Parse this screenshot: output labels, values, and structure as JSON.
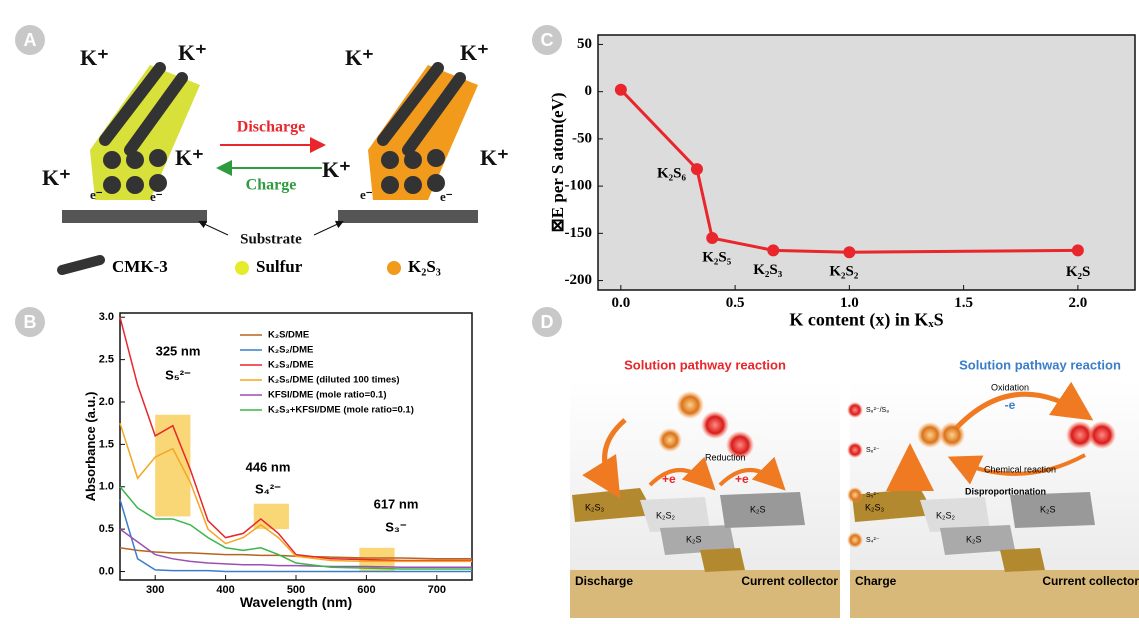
{
  "panel_labels": [
    "A",
    "B",
    "C",
    "D"
  ],
  "panel_a": {
    "ion": "K⁺",
    "electron": "e⁻",
    "discharge": "Discharge",
    "charge": "Charge",
    "substrate": "Substrate",
    "legend": [
      "CMK-3",
      "Sulfur",
      "K₂S₃"
    ]
  },
  "panel_d": {
    "left_title": "Solution pathway reaction",
    "right_title": "Solution pathway reaction",
    "reduction": "Reduction",
    "plus_e": "+e",
    "oxidation": "Oxidation",
    "minus_e": "-e",
    "chemical": "Chemical reaction",
    "disproportionation": "Disproportionation",
    "species": [
      "K₂S₃",
      "K₂S₂",
      "K₂S"
    ],
    "discharge": "Discharge",
    "charge": "Charge",
    "collector": "Current collector",
    "legend": [
      "S₈²⁻/S₈",
      "S₆²⁻",
      "S₅²⁻",
      "S₄²⁻"
    ]
  },
  "chart_data": [
    {
      "type": "line",
      "xlabel": "Wavelength (nm)",
      "ylabel": "Absorbance (a.u.)",
      "x": [
        250,
        275,
        300,
        325,
        350,
        375,
        400,
        425,
        450,
        475,
        500,
        550,
        600,
        650,
        700,
        750
      ],
      "xlim": [
        250,
        750
      ],
      "xticks": [
        300,
        400,
        500,
        600,
        700
      ],
      "ylim": [
        -0.1,
        3.05
      ],
      "yticks": [
        {
          "value": 0,
          "label": "0.0"
        },
        0.5,
        {
          "value": 1,
          "label": "1.0"
        },
        1.5,
        {
          "value": 2,
          "label": "2.0"
        },
        2.5,
        {
          "value": 3,
          "label": "3.0"
        }
      ],
      "series": [
        {
          "name": "K₂S/DME",
          "color": "#b5651d",
          "values": [
            0.28,
            0.25,
            0.23,
            0.22,
            0.22,
            0.21,
            0.2,
            0.2,
            0.19,
            0.19,
            0.18,
            0.17,
            0.16,
            0.16,
            0.15,
            0.15
          ]
        },
        {
          "name": "K₂S₂/DME",
          "color": "#3a7dc9",
          "values": [
            0.85,
            0.15,
            0.02,
            0.01,
            0.01,
            0.01,
            0.0,
            0.0,
            0.0,
            0.0,
            0.0,
            0.0,
            0.0,
            0.0,
            0.0,
            0.0
          ]
        },
        {
          "name": "K₂S₃/DME",
          "color": "#e8262b",
          "values": [
            3.0,
            2.2,
            1.6,
            1.72,
            1.2,
            0.6,
            0.4,
            0.45,
            0.62,
            0.45,
            0.2,
            0.15,
            0.14,
            0.13,
            0.13,
            0.13
          ]
        },
        {
          "name": "K₂S₅/DME (diluted 100 times)",
          "color": "#f5a623",
          "values": [
            1.75,
            1.1,
            1.35,
            1.45,
            1.05,
            0.5,
            0.33,
            0.4,
            0.55,
            0.4,
            0.18,
            0.13,
            0.12,
            0.12,
            0.12,
            0.12
          ]
        },
        {
          "name": "KFSI/DME (mole ratio=0.1)",
          "color": "#9b4fb5",
          "values": [
            0.5,
            0.35,
            0.2,
            0.15,
            0.12,
            0.1,
            0.09,
            0.08,
            0.08,
            0.07,
            0.07,
            0.06,
            0.06,
            0.05,
            0.05,
            0.05
          ]
        },
        {
          "name": "K₂S₃+KFSI/DME (mole ratio=0.1)",
          "color": "#3cb54a",
          "values": [
            1.0,
            0.75,
            0.62,
            0.62,
            0.55,
            0.4,
            0.28,
            0.25,
            0.28,
            0.2,
            0.1,
            0.05,
            0.04,
            0.03,
            0.03,
            0.03
          ]
        }
      ],
      "highlights": [
        {
          "x": [
            300,
            350
          ],
          "y": [
            0.65,
            1.85
          ]
        },
        {
          "x": [
            440,
            490
          ],
          "y": [
            0.5,
            0.8
          ]
        },
        {
          "x": [
            590,
            640
          ],
          "y": [
            0.0,
            0.28
          ]
        }
      ],
      "highlight_color": "#f7c948",
      "annotations": [
        "325 nm",
        "S₅²⁻",
        "446 nm",
        "S₄²⁻",
        "617 nm",
        "S₃⁻"
      ],
      "legend": "upper right"
    },
    {
      "type": "line",
      "xlabel": "K content (x) in KₓS",
      "ylabel": "⊠E per S atom(eV)",
      "x": [
        0,
        0.333,
        0.4,
        0.667,
        1.0,
        2.0
      ],
      "xlim": [
        -0.1,
        2.25
      ],
      "xticks": [
        {
          "value": 0,
          "label": "0.0"
        },
        0.5,
        {
          "value": 1,
          "label": "1.0"
        },
        1.5,
        {
          "value": 2,
          "label": "2.0"
        }
      ],
      "ylim": [
        -210,
        60
      ],
      "yticks": [
        50,
        0,
        -50,
        -100,
        -150,
        -200
      ],
      "background": "#dcdcdc",
      "markers": true,
      "series": [
        {
          "color": "#e8262b",
          "values": [
            2,
            -82,
            -155,
            -168,
            -170,
            -168
          ]
        }
      ],
      "point_labels": [
        null,
        "K₂S₆",
        "K₂S₅",
        "K₂S₃",
        "K₂S₂",
        "K₂S"
      ]
    }
  ]
}
